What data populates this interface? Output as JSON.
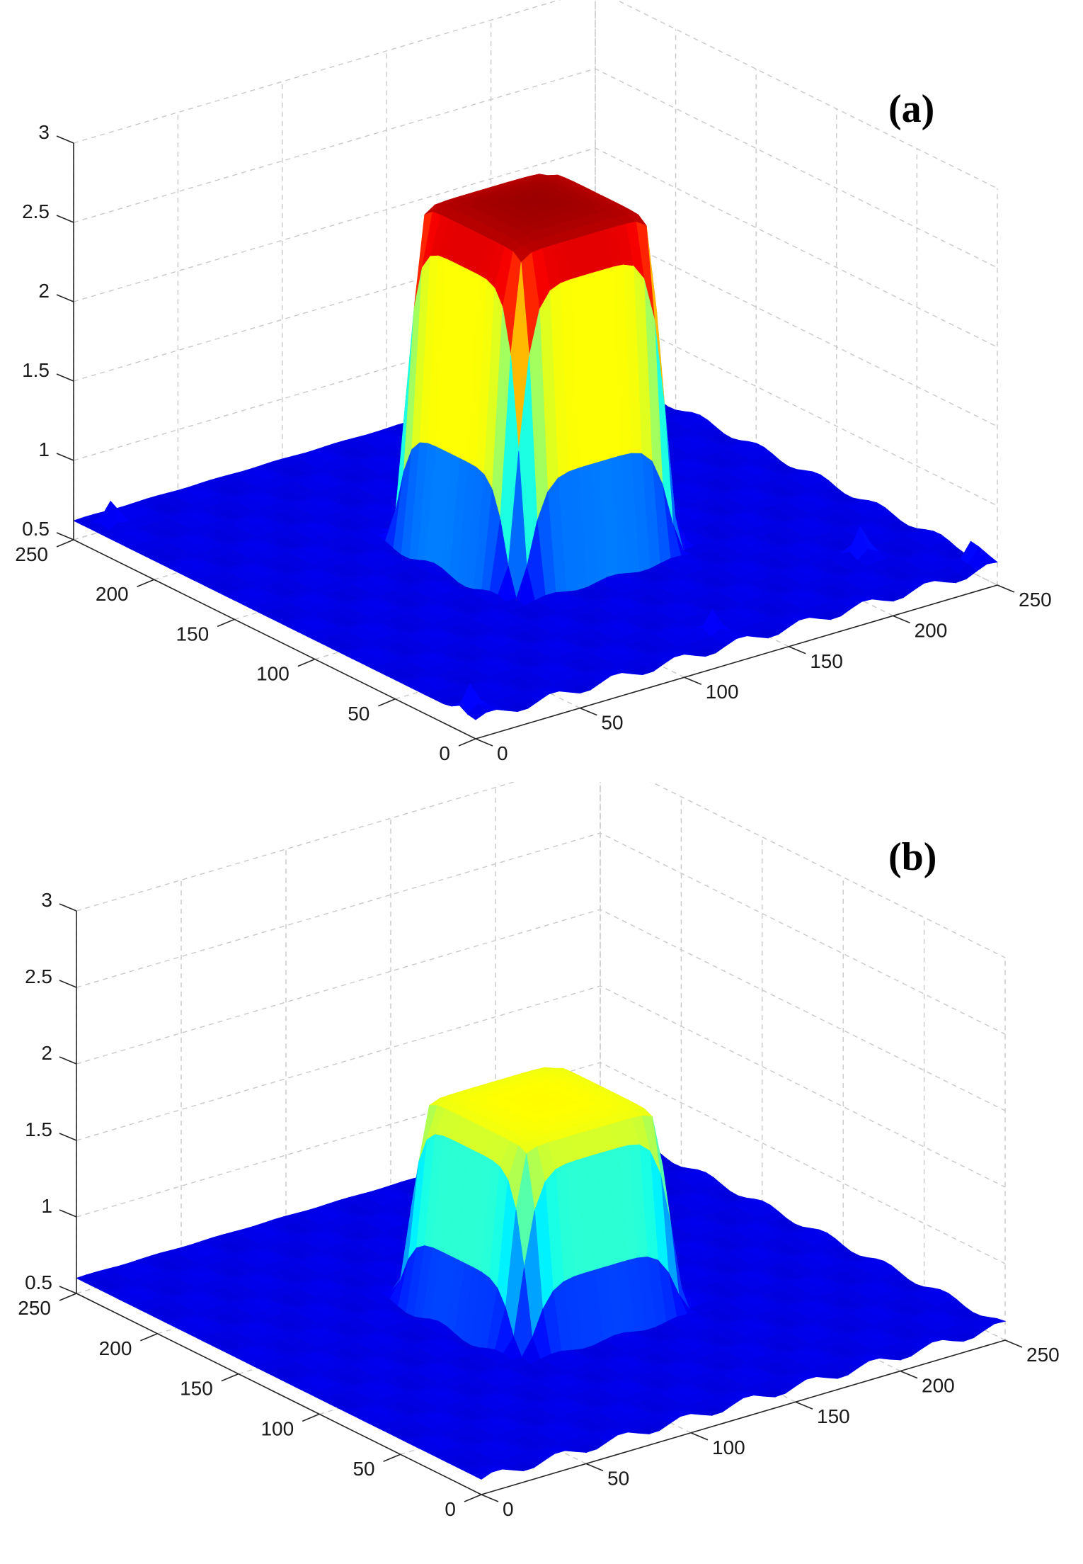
{
  "chart_data": [
    {
      "type": "surface",
      "panel_label": "(a)",
      "title": "",
      "xlabel": "",
      "ylabel": "",
      "zlabel": "",
      "xlim": [
        0,
        250
      ],
      "ylim": [
        0,
        250
      ],
      "zlim": [
        0.5,
        3
      ],
      "x_ticks": [
        "0",
        "50",
        "100",
        "150",
        "200",
        "250"
      ],
      "y_ticks": [
        "0",
        "50",
        "100",
        "150",
        "200",
        "250"
      ],
      "z_ticks": [
        "0.5",
        "1",
        "1.5",
        "2",
        "2.5",
        "3"
      ],
      "grid": true,
      "colormap": "jet",
      "surface": {
        "base_level": 0.62,
        "plateau_peak": 2.78,
        "plateau_x_range": [
          85,
          165
        ],
        "plateau_y_range": [
          85,
          165
        ],
        "corner_spikes": true
      }
    },
    {
      "type": "surface",
      "panel_label": "(b)",
      "title": "",
      "xlabel": "",
      "ylabel": "",
      "zlabel": "",
      "xlim": [
        0,
        250
      ],
      "ylim": [
        0,
        250
      ],
      "zlim": [
        0.5,
        3
      ],
      "x_ticks": [
        "0",
        "50",
        "100",
        "150",
        "200",
        "250"
      ],
      "y_ticks": [
        "0",
        "50",
        "100",
        "150",
        "200",
        "250"
      ],
      "z_ticks": [
        "0.5",
        "1",
        "1.5",
        "2",
        "2.5",
        "3"
      ],
      "grid": true,
      "colormap": "jet",
      "surface": {
        "base_level": 0.6,
        "plateau_peak": 1.92,
        "plateau_x_range": [
          85,
          165
        ],
        "plateau_y_range": [
          85,
          165
        ],
        "corner_spikes": false
      }
    }
  ]
}
